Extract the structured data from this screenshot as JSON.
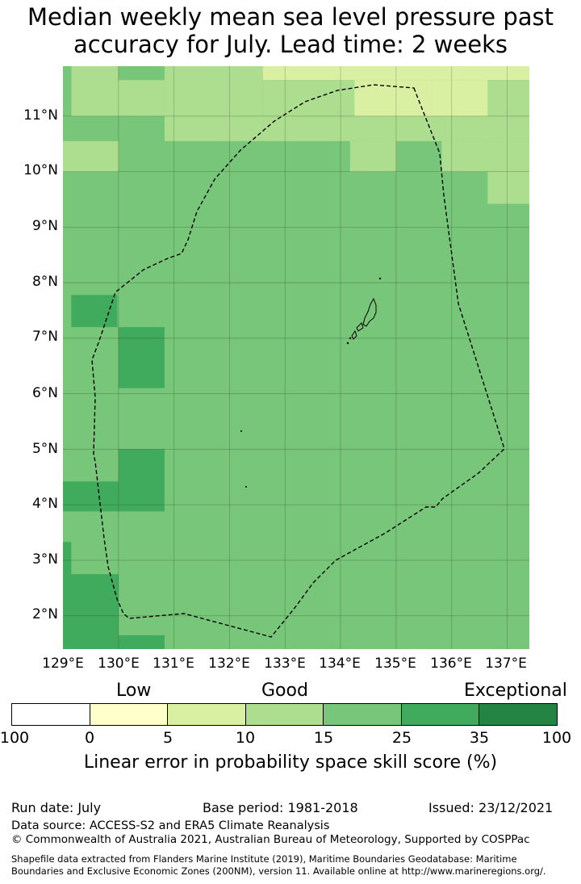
{
  "title": {
    "line1": "Median weekly mean sea level pressure past",
    "line2": "accuracy for July. Lead time: 2 weeks"
  },
  "map": {
    "lat_labels": [
      "11°N",
      "10°N",
      "9°N",
      "8°N",
      "7°N",
      "6°N",
      "5°N",
      "4°N",
      "3°N",
      "2°N"
    ],
    "lon_labels": [
      "129°E",
      "130°E",
      "131°E",
      "132°E",
      "133°E",
      "134°E",
      "135°E",
      "136°E",
      "137°E"
    ],
    "lon_range": [
      129,
      137.4
    ],
    "lat_range": [
      1.4,
      11.9
    ],
    "dominant_category": "15-25",
    "grid_cells": [
      {
        "lon": [
          129.15,
          130.0
        ],
        "lat": [
          11.0,
          11.9
        ],
        "category": "10-15"
      },
      {
        "lon": [
          129.0,
          129.15
        ],
        "lat": [
          11.0,
          11.9
        ],
        "category": "15-25"
      },
      {
        "lon": [
          130.0,
          130.83
        ],
        "lat": [
          11.65,
          11.9
        ],
        "category": "15-25"
      },
      {
        "lon": [
          130.0,
          130.83
        ],
        "lat": [
          11.0,
          11.65
        ],
        "category": "10-15"
      },
      {
        "lon": [
          130.83,
          132.6
        ],
        "lat": [
          11.0,
          11.9
        ],
        "category": "10-15"
      },
      {
        "lon": [
          132.6,
          137.4
        ],
        "lat": [
          11.65,
          11.9
        ],
        "category": "5-10"
      },
      {
        "lon": [
          132.6,
          134.25
        ],
        "lat": [
          11.0,
          11.65
        ],
        "category": "10-15"
      },
      {
        "lon": [
          134.25,
          135.65
        ],
        "lat": [
          11.0,
          11.65
        ],
        "category": "5-10"
      },
      {
        "lon": [
          135.65,
          136.65
        ],
        "lat": [
          11.0,
          11.65
        ],
        "category": "5-10"
      },
      {
        "lon": [
          136.65,
          137.4
        ],
        "lat": [
          11.0,
          11.65
        ],
        "category": "10-15"
      },
      {
        "lon": [
          130.83,
          132.6
        ],
        "lat": [
          10.55,
          11.0
        ],
        "category": "10-15"
      },
      {
        "lon": [
          132.6,
          137.4
        ],
        "lat": [
          10.55,
          11.0
        ],
        "category": "10-15"
      },
      {
        "lon": [
          129.0,
          130.0
        ],
        "lat": [
          10.0,
          10.55
        ],
        "category": "10-15"
      },
      {
        "lon": [
          134.17,
          135.0
        ],
        "lat": [
          10.0,
          10.55
        ],
        "category": "10-15"
      },
      {
        "lon": [
          135.82,
          136.65
        ],
        "lat": [
          10.0,
          10.55
        ],
        "category": "10-15"
      },
      {
        "lon": [
          136.65,
          137.4
        ],
        "lat": [
          10.0,
          10.55
        ],
        "category": "10-15"
      },
      {
        "lon": [
          136.65,
          137.4
        ],
        "lat": [
          9.42,
          10.0
        ],
        "category": "10-15"
      },
      {
        "lon": [
          129.15,
          129.98
        ],
        "lat": [
          7.2,
          7.78
        ],
        "category": "25-35"
      },
      {
        "lon": [
          130.0,
          130.83
        ],
        "lat": [
          6.1,
          7.2
        ],
        "category": "25-35"
      },
      {
        "lon": [
          130.0,
          130.83
        ],
        "lat": [
          3.88,
          5.0
        ],
        "category": "25-35"
      },
      {
        "lon": [
          129.0,
          130.0
        ],
        "lat": [
          3.88,
          4.42
        ],
        "category": "25-35"
      },
      {
        "lon": [
          129.0,
          129.15
        ],
        "lat": [
          2.75,
          3.33
        ],
        "category": "25-35"
      },
      {
        "lon": [
          129.0,
          130.0
        ],
        "lat": [
          1.4,
          2.75
        ],
        "category": "25-35"
      },
      {
        "lon": [
          130.0,
          130.83
        ],
        "lat": [
          1.4,
          1.65
        ],
        "category": "25-35"
      }
    ]
  },
  "legend": {
    "categories": [
      "Low",
      "Good",
      "Exceptional"
    ],
    "ticks": [
      "100",
      "0",
      "5",
      "10",
      "15",
      "25",
      "35",
      "100"
    ],
    "colors": [
      "#ffffff",
      "#ffffcc",
      "#d9f0a3",
      "#addd8e",
      "#78c679",
      "#41ab5d",
      "#238443"
    ],
    "label": "Linear error in probability space skill score (%)"
  },
  "footer": {
    "run_date": "Run date: July",
    "base_period": "Base period: 1981-2018",
    "issued": "Issued: 23/12/2021",
    "data_source": "Data source: ACCESS-S2 and ERA5 Climate Reanalysis",
    "copyright": "© Commonwealth of Australia 2021, Australian Bureau of Meteorology, Supported by COSPPac",
    "shapefile_line1": "Shapefile data extracted from Flanders Marine Institute (2019), Maritime Boundaries Geodatabase: Maritime",
    "shapefile_line2": "Boundaries and Exclusive Economic Zones (200NM), version 11. Available online at http://www.marineregions.org/."
  }
}
